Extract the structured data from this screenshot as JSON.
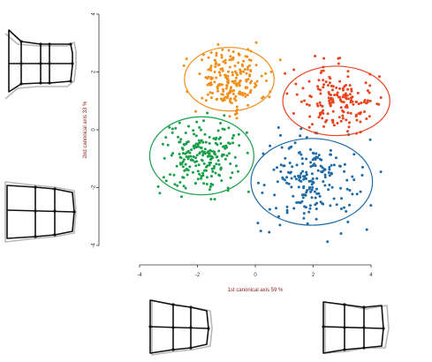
{
  "chart_data": {
    "type": "scatter",
    "title": "",
    "xlabel": "1st canonical axis 59 %",
    "ylabel": "2nd canonical axis 33 %",
    "xlim": [
      -4,
      4
    ],
    "ylim": [
      -4,
      4
    ],
    "x_ticks": [
      "-4",
      "-2",
      "0",
      "2",
      "4"
    ],
    "y_ticks": [
      "-4",
      "-2",
      "0",
      "2",
      "4"
    ],
    "grid": false,
    "legend": "none",
    "groups": [
      {
        "color": "#f0901c",
        "center": [
          -0.9,
          1.75
        ],
        "radius": [
          1.55,
          1.1
        ],
        "count": 210,
        "spread": [
          0.6,
          0.52
        ]
      },
      {
        "color": "#e8441e",
        "center": [
          2.8,
          1.0
        ],
        "radius": [
          1.85,
          1.2
        ],
        "count": 170,
        "spread": [
          0.68,
          0.56
        ]
      },
      {
        "color": "#1a9f4a",
        "center": [
          -1.85,
          -0.9
        ],
        "radius": [
          1.8,
          1.35
        ],
        "count": 220,
        "spread": [
          0.68,
          0.62
        ]
      },
      {
        "color": "#1c6aa6",
        "center": [
          1.95,
          -1.8
        ],
        "radius": [
          2.1,
          1.5
        ],
        "count": 200,
        "spread": [
          0.82,
          0.72
        ]
      }
    ]
  },
  "shape_glyphs": [
    {
      "name": "glyph-left-top"
    },
    {
      "name": "glyph-left-middle"
    },
    {
      "name": "glyph-bottom-left"
    },
    {
      "name": "glyph-bottom-right"
    }
  ]
}
